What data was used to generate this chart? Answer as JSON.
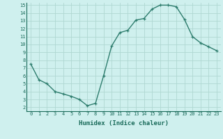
{
  "x": [
    0,
    1,
    2,
    3,
    4,
    5,
    6,
    7,
    8,
    9,
    10,
    11,
    12,
    13,
    14,
    15,
    16,
    17,
    18,
    19,
    20,
    21,
    22,
    23
  ],
  "y": [
    7.5,
    5.5,
    5.0,
    4.0,
    3.7,
    3.4,
    3.0,
    2.2,
    2.5,
    6.0,
    9.8,
    11.5,
    11.8,
    13.1,
    13.3,
    14.5,
    15.0,
    15.0,
    14.8,
    13.2,
    11.0,
    10.2,
    9.7,
    9.2
  ],
  "line_color": "#2e7d6e",
  "bg_color": "#cff0ee",
  "grid_color": "#afd8d2",
  "xlabel": "Humidex (Indice chaleur)",
  "xlabel_color": "#1a6b5a",
  "tick_color": "#1a6b5a",
  "ylim": [
    1.5,
    15.3
  ],
  "xlim": [
    -0.5,
    23.5
  ],
  "yticks": [
    2,
    3,
    4,
    5,
    6,
    7,
    8,
    9,
    10,
    11,
    12,
    13,
    14,
    15
  ],
  "xticks": [
    0,
    1,
    2,
    3,
    4,
    5,
    6,
    7,
    8,
    9,
    10,
    11,
    12,
    13,
    14,
    15,
    16,
    17,
    18,
    19,
    20,
    21,
    22,
    23
  ],
  "marker": "+",
  "markersize": 3,
  "linewidth": 1.0,
  "tick_fontsize": 5.0,
  "xlabel_fontsize": 6.5
}
